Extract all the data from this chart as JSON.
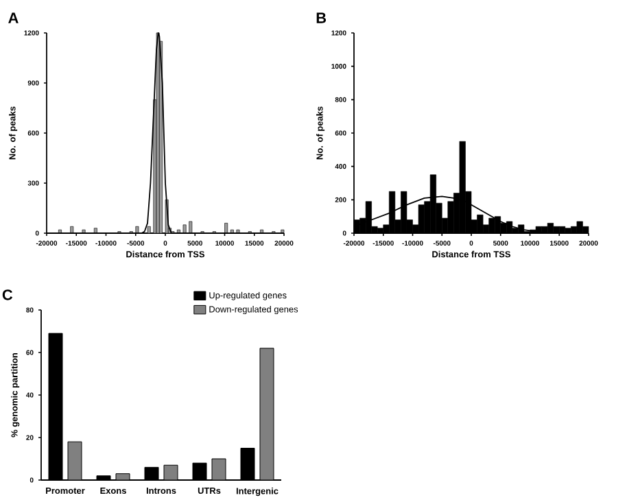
{
  "chart_data": [
    {
      "type": "histogram",
      "title": "A",
      "xlabel": "Distance from TSS",
      "ylabel": "No. of peaks",
      "xlim": [
        -20000,
        20000
      ],
      "ylim": [
        0,
        1200
      ],
      "xticks": [
        -20000,
        -15000,
        -10000,
        -5000,
        0,
        5000,
        10000,
        15000,
        20000
      ],
      "yticks": [
        0,
        300,
        600,
        900,
        1200
      ],
      "series": [
        {
          "type": "histogram",
          "color": "#9a9a9a",
          "bins": [
            -20000,
            -19500,
            -19000,
            -18500,
            -18000,
            -17500,
            -17000,
            -16500,
            -16000,
            -15500,
            -15000,
            -14500,
            -14000,
            -13500,
            -13000,
            -12500,
            -12000,
            -11500,
            -11000,
            -10500,
            -10000,
            -9500,
            -9000,
            -8500,
            -8000,
            -7500,
            -7000,
            -6500,
            -6000,
            -5500,
            -5000,
            -4500,
            -4000,
            -3500,
            -3000,
            -2500,
            -2000,
            -1500,
            -1000,
            -500,
            0,
            500,
            1000,
            1500,
            2000,
            2500,
            3000,
            3500,
            4000,
            4500,
            5000,
            5500,
            6000,
            6500,
            7000,
            7500,
            8000,
            8500,
            9000,
            9500,
            10000,
            10500,
            11000,
            11500,
            12000,
            12500,
            13000,
            13500,
            14000,
            14500,
            15000,
            15500,
            16000,
            16500,
            17000,
            17500,
            18000,
            18500,
            19000,
            19500,
            20000
          ],
          "values": [
            null,
            null,
            null,
            null,
            20,
            null,
            null,
            null,
            40,
            null,
            null,
            null,
            20,
            null,
            null,
            null,
            30,
            null,
            null,
            null,
            null,
            null,
            null,
            null,
            10,
            null,
            null,
            null,
            10,
            null,
            40,
            null,
            null,
            null,
            40,
            null,
            800,
            1200,
            1150,
            null,
            200,
            30,
            10,
            null,
            20,
            null,
            50,
            null,
            70,
            null,
            null,
            null,
            10,
            null,
            null,
            null,
            10,
            null,
            null,
            null,
            60,
            null,
            20,
            null,
            20,
            null,
            null,
            null,
            10,
            null,
            null,
            null,
            20,
            null,
            null,
            null,
            10,
            null,
            null,
            20
          ]
        },
        {
          "type": "line",
          "color": "#000000",
          "x": [
            -20000,
            -4000,
            -3500,
            -3000,
            -2500,
            -2000,
            -1500,
            -1200,
            -1000,
            -500,
            0,
            500,
            1000,
            20000
          ],
          "values": [
            0,
            0,
            10,
            60,
            300,
            700,
            1100,
            1200,
            1180,
            900,
            300,
            50,
            0,
            0
          ]
        }
      ]
    },
    {
      "type": "histogram",
      "title": "B",
      "xlabel": "Distance from TSS",
      "ylabel": "No. of peaks",
      "xlim": [
        -20000,
        20000
      ],
      "ylim": [
        0,
        1200
      ],
      "xticks": [
        -20000,
        -15000,
        -10000,
        -5000,
        0,
        5000,
        10000,
        15000,
        20000
      ],
      "yticks": [
        0,
        200,
        400,
        600,
        800,
        1000,
        1200
      ],
      "series": [
        {
          "type": "histogram",
          "color": "#000000",
          "bins": [
            -20000,
            -19000,
            -18000,
            -17000,
            -16000,
            -15000,
            -14000,
            -13000,
            -12000,
            -11000,
            -10000,
            -9000,
            -8000,
            -7000,
            -6000,
            -5000,
            -4000,
            -3000,
            -2000,
            -1000,
            0,
            1000,
            2000,
            3000,
            4000,
            5000,
            6000,
            7000,
            8000,
            9000,
            10000,
            11000,
            12000,
            13000,
            14000,
            15000,
            16000,
            17000,
            18000,
            19000,
            20000
          ],
          "values": [
            80,
            90,
            190,
            40,
            30,
            50,
            250,
            80,
            250,
            80,
            50,
            170,
            190,
            350,
            180,
            90,
            190,
            240,
            550,
            250,
            80,
            110,
            50,
            90,
            100,
            60,
            70,
            30,
            50,
            10,
            20,
            40,
            40,
            60,
            40,
            40,
            30,
            40,
            70,
            40
          ]
        },
        {
          "type": "line",
          "color": "#000000",
          "x": [
            -20000,
            -17000,
            -14000,
            -11000,
            -8000,
            -5000,
            -3000,
            -1000,
            1000,
            3000,
            5000,
            7000,
            9000,
            11000,
            13000,
            16000,
            20000
          ],
          "values": [
            40,
            80,
            120,
            170,
            210,
            220,
            210,
            190,
            150,
            110,
            70,
            40,
            20,
            10,
            0,
            0,
            0
          ]
        }
      ]
    },
    {
      "type": "bar",
      "title": "C",
      "ylabel": "% genomic partition",
      "categories": [
        "Promoter",
        "Exons",
        "Introns",
        "UTRs",
        "Intergenic"
      ],
      "ylim": [
        0,
        80
      ],
      "yticks": [
        0,
        20,
        40,
        60,
        80
      ],
      "legend": "top right",
      "series": [
        {
          "name": "Up-regulated genes",
          "color": "#000000",
          "values": [
            69,
            2,
            6,
            8,
            15
          ]
        },
        {
          "name": "Down-regulated genes",
          "color": "#808080",
          "values": [
            18,
            3,
            7,
            10,
            62
          ]
        }
      ]
    }
  ]
}
